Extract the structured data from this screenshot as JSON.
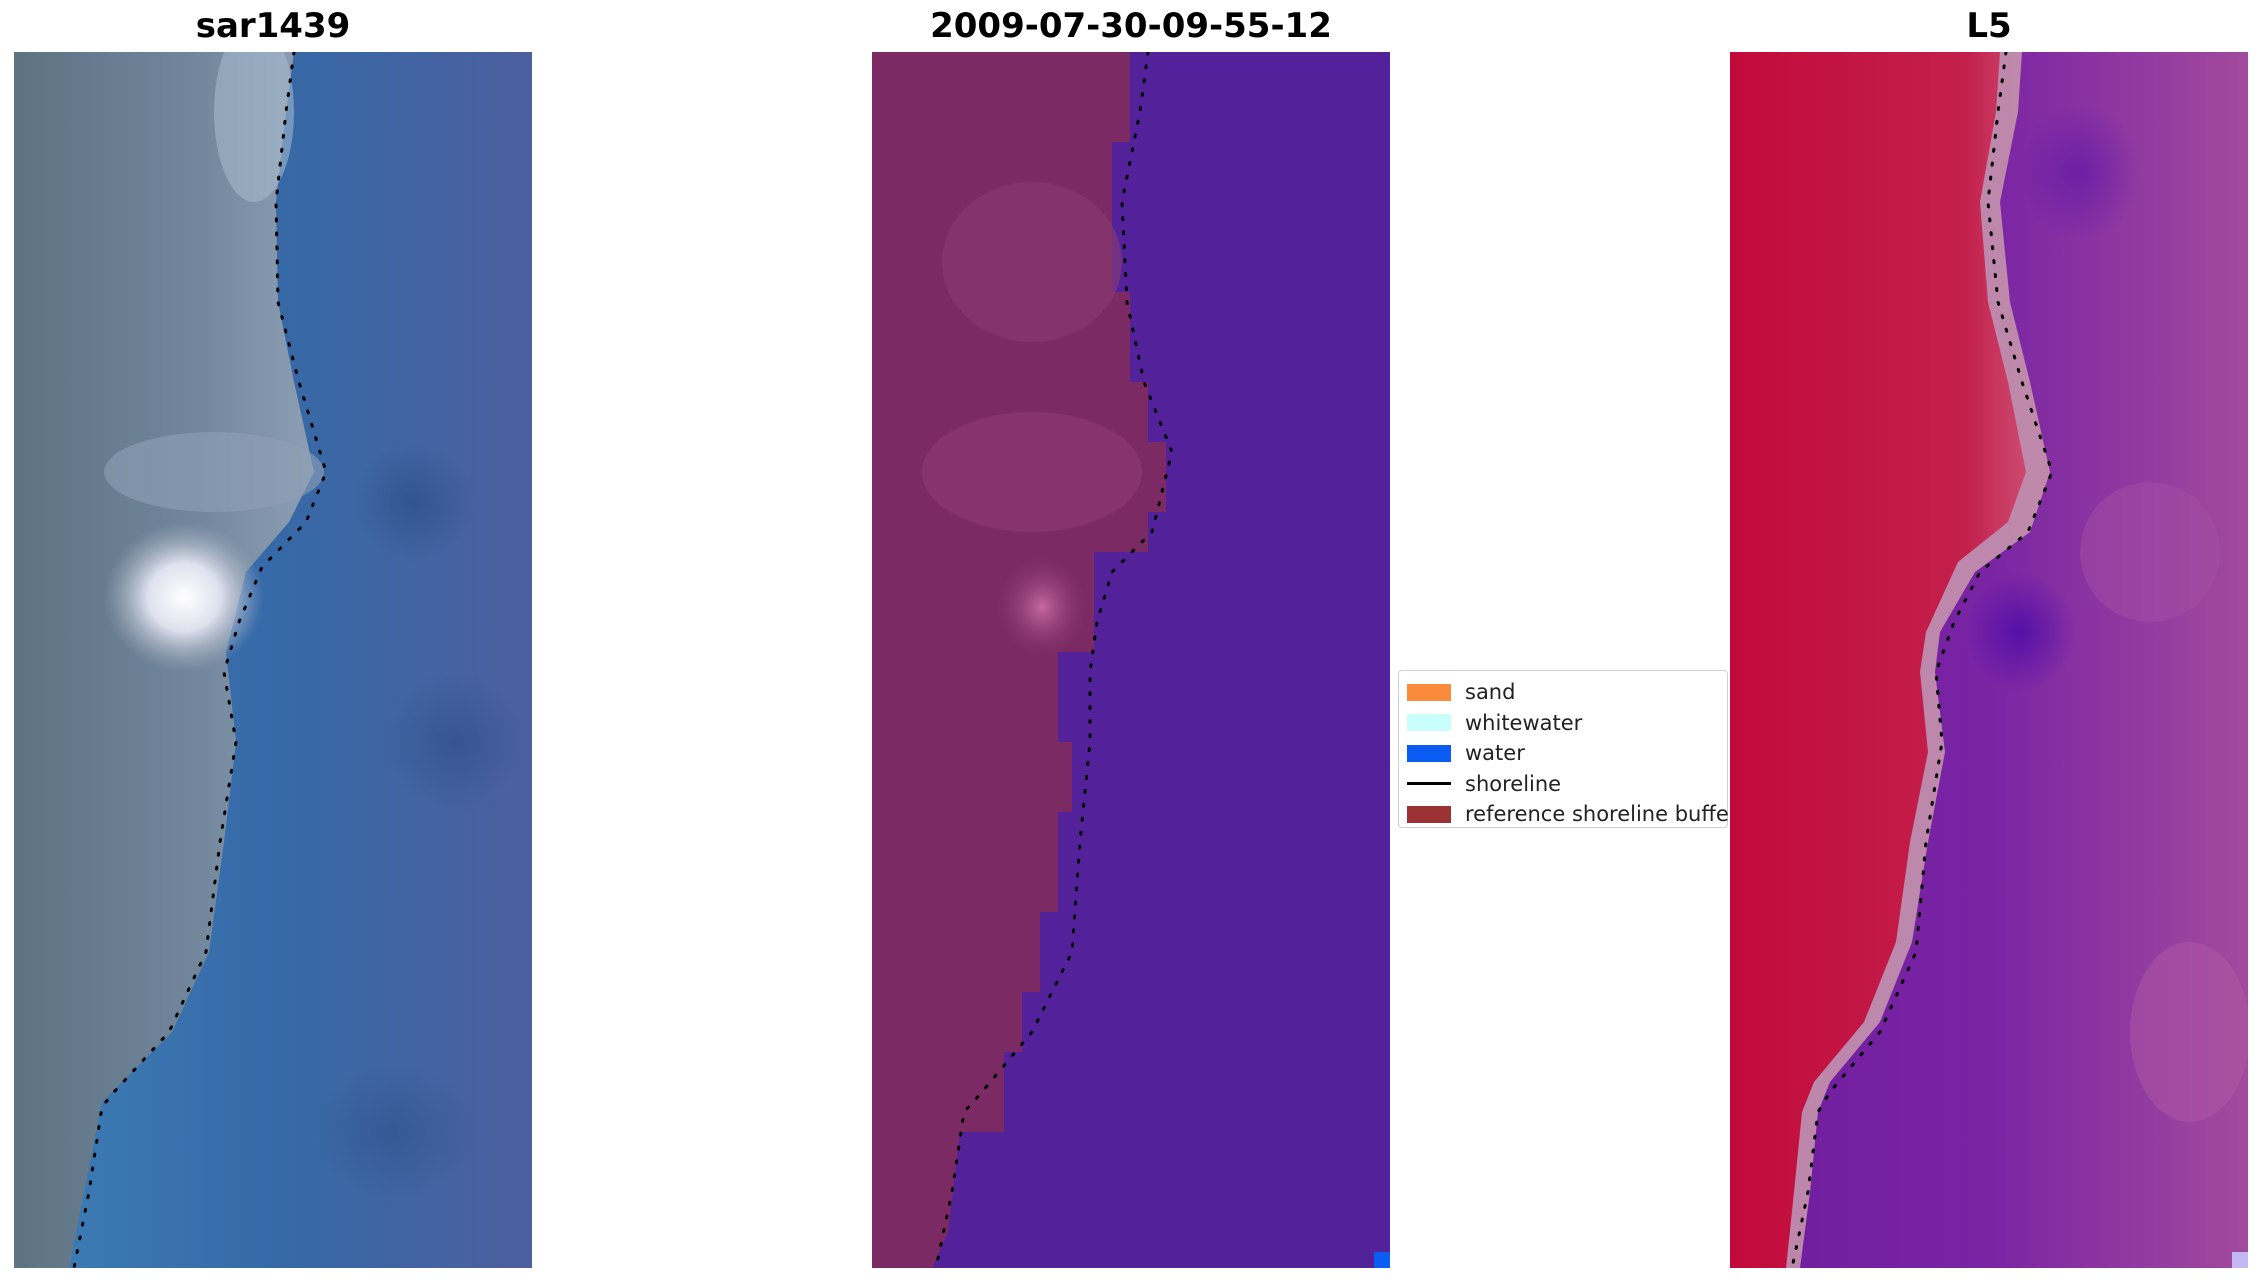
{
  "figure": {
    "panels": [
      {
        "title": "sar1439",
        "kind": "rgb"
      },
      {
        "title": "2009-07-30-09-55-12",
        "kind": "classified"
      },
      {
        "title": "L5",
        "kind": "false-color"
      }
    ]
  },
  "legend": {
    "items": [
      {
        "label": "sand",
        "color": "#f98b3a",
        "type": "patch"
      },
      {
        "label": "whitewater",
        "color": "#c8fffb",
        "type": "patch"
      },
      {
        "label": "water",
        "color": "#0a5cf2",
        "type": "patch"
      },
      {
        "label": "shoreline",
        "color": "#000000",
        "type": "line"
      },
      {
        "label": "reference shoreline buffer",
        "color": "#9b3334",
        "type": "patch"
      }
    ]
  },
  "colors": {
    "rgb_land": "#6f8196",
    "rgb_water": "#3a69a8",
    "class_land": "#7d2b62",
    "class_water": "#53229a",
    "fc_land": "#c01e4a",
    "fc_water": "#7c22a2",
    "shoreline_dots": "#000000"
  }
}
